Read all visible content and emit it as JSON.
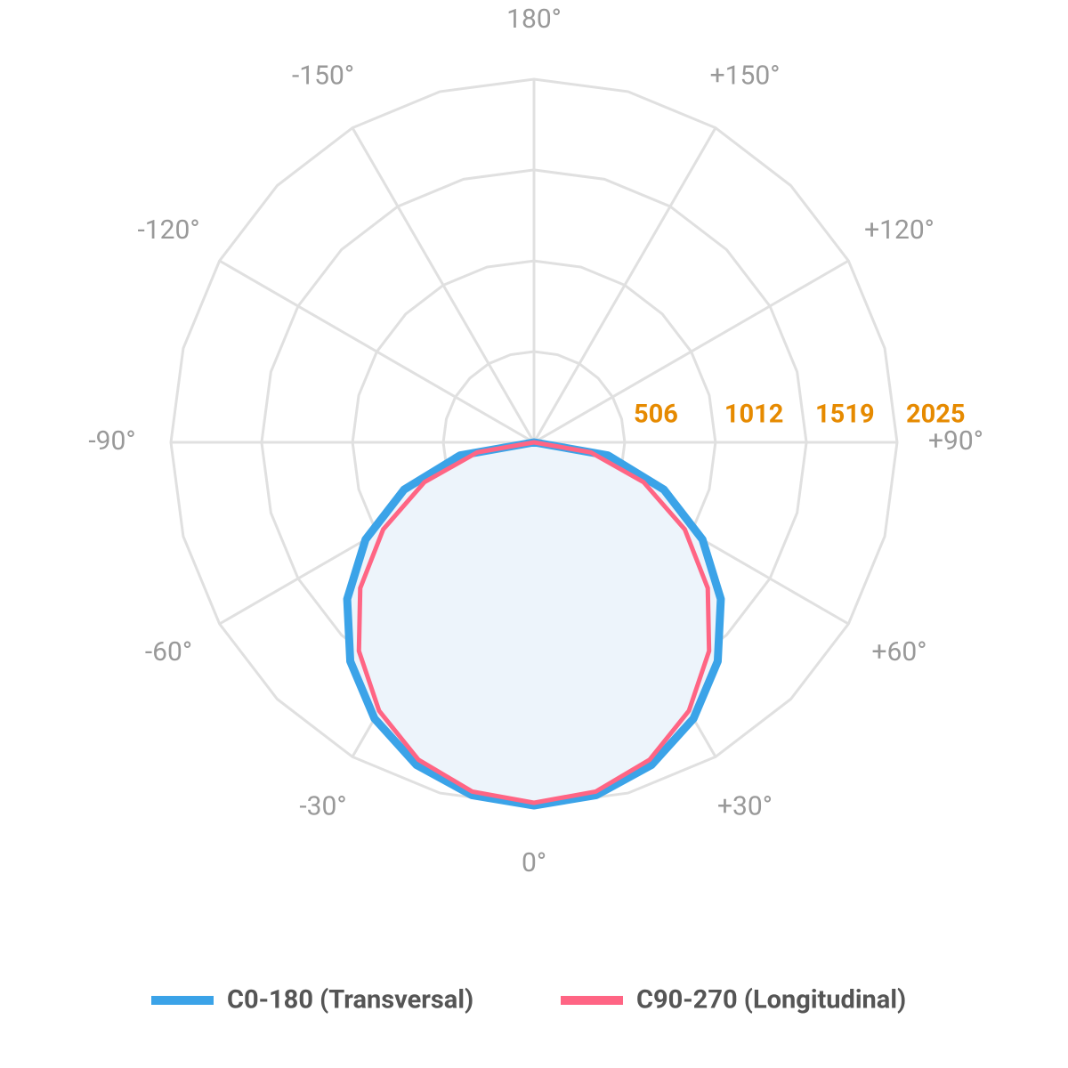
{
  "chart_data": {
    "type": "polar",
    "theta": [
      -90,
      -80,
      -70,
      -60,
      -50,
      -40,
      -30,
      -20,
      -10,
      0,
      10,
      20,
      30,
      40,
      50,
      60,
      70,
      80,
      90
    ],
    "series": [
      {
        "name": "C0-180 (Transversal)",
        "color": "#3ba3e8",
        "fill": "#edf4fb",
        "values": [
          0,
          419,
          771,
          1085,
          1360,
          1594,
          1779,
          1915,
          1998,
          2025,
          1998,
          1915,
          1779,
          1594,
          1360,
          1085,
          771,
          419,
          0
        ]
      },
      {
        "name": "C90-270 (Longitudinal)",
        "color": "#ff6584",
        "values": [
          0,
          321,
          651,
          971,
          1265,
          1519,
          1728,
          1884,
          1978,
          2010,
          1978,
          1884,
          1728,
          1519,
          1265,
          971,
          651,
          321,
          0
        ]
      }
    ],
    "rlim": [
      0,
      2025
    ],
    "rticks": [
      506,
      1012,
      1519,
      2025
    ],
    "thetaticks": [
      {
        "value": 180,
        "label": "180°"
      },
      {
        "value": 150,
        "label": "+150°"
      },
      {
        "value": 120,
        "label": "+120°"
      },
      {
        "value": 90,
        "label": "+90°"
      },
      {
        "value": 60,
        "label": "+60°"
      },
      {
        "value": 30,
        "label": "+30°"
      },
      {
        "value": 0,
        "label": "0°"
      },
      {
        "value": -30,
        "label": "-30°"
      },
      {
        "value": -60,
        "label": "-60°"
      },
      {
        "value": -90,
        "label": "-90°"
      },
      {
        "value": -120,
        "label": "-120°"
      },
      {
        "value": -150,
        "label": "-150°"
      }
    ],
    "rtick_color": "#e68a00",
    "grid": true
  }
}
